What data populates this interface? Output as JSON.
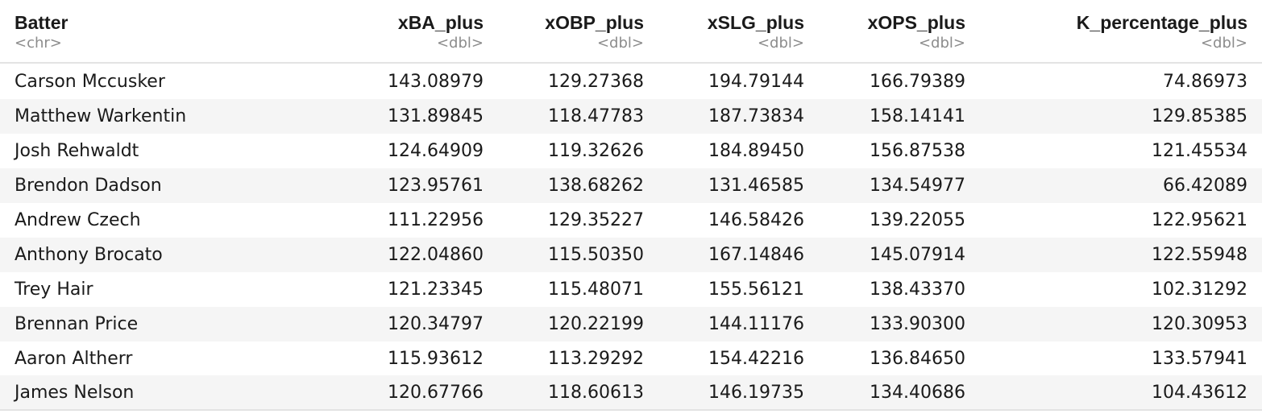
{
  "columns": [
    {
      "name": "Batter",
      "type": "<chr>"
    },
    {
      "name": "xBA_plus",
      "type": "<dbl>"
    },
    {
      "name": "xOBP_plus",
      "type": "<dbl>"
    },
    {
      "name": "xSLG_plus",
      "type": "<dbl>"
    },
    {
      "name": "xOPS_plus",
      "type": "<dbl>"
    },
    {
      "name": "K_percentage_plus",
      "type": "<dbl>"
    }
  ],
  "rows": [
    [
      "Carson Mccusker",
      "143.08979",
      "129.27368",
      "194.79144",
      "166.79389",
      "74.86973"
    ],
    [
      "Matthew Warkentin",
      "131.89845",
      "118.47783",
      "187.73834",
      "158.14141",
      "129.85385"
    ],
    [
      "Josh Rehwaldt",
      "124.64909",
      "119.32626",
      "184.89450",
      "156.87538",
      "121.45534"
    ],
    [
      "Brendon Dadson",
      "123.95761",
      "138.68262",
      "131.46585",
      "134.54977",
      "66.42089"
    ],
    [
      "Andrew Czech",
      "111.22956",
      "129.35227",
      "146.58426",
      "139.22055",
      "122.95621"
    ],
    [
      "Anthony Brocato",
      "122.04860",
      "115.50350",
      "167.14846",
      "145.07914",
      "122.55948"
    ],
    [
      "Trey Hair",
      "121.23345",
      "115.48071",
      "155.56121",
      "138.43370",
      "102.31292"
    ],
    [
      "Brennan Price",
      "120.34797",
      "120.22199",
      "144.11176",
      "133.90300",
      "120.30953"
    ],
    [
      "Aaron Altherr",
      "115.93612",
      "113.29292",
      "154.42216",
      "136.84650",
      "133.57941"
    ],
    [
      "James Nelson",
      "120.67766",
      "118.60613",
      "146.19735",
      "134.40686",
      "104.43612"
    ]
  ]
}
